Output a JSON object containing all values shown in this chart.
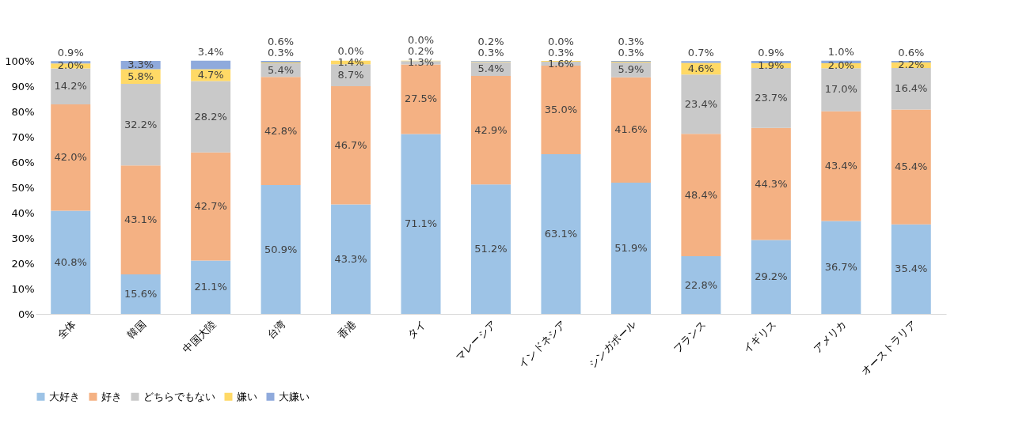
{
  "chart_data": {
    "type": "bar",
    "stacked": true,
    "categories": [
      "全体",
      "韓国",
      "中国大陸",
      "台湾",
      "香港",
      "タイ",
      "マレーシア",
      "インドネシア",
      "シンガポール",
      "フランス",
      "イギリス",
      "アメリカ",
      "オーストラリア"
    ],
    "series": [
      {
        "name": "大好き",
        "color": "#9dc3e6",
        "values": [
          40.8,
          15.6,
          21.1,
          50.9,
          43.3,
          71.1,
          51.2,
          63.1,
          51.9,
          22.8,
          29.2,
          36.7,
          35.4
        ],
        "value_labels": [
          "40.8%",
          "15.6%",
          "21.1%",
          "50.9%",
          "43.3%",
          "71.1%",
          "51.2%",
          "63.1%",
          "51.9%",
          "22.8%",
          "29.2%",
          "36.7%",
          "35.4%"
        ]
      },
      {
        "name": "好き",
        "color": "#f4b183",
        "values": [
          42.0,
          43.1,
          42.7,
          42.8,
          46.7,
          27.5,
          42.9,
          35.0,
          41.6,
          48.4,
          44.3,
          43.4,
          45.4
        ],
        "value_labels": [
          "42.0%",
          "43.1%",
          "42.7%",
          "42.8%",
          "46.7%",
          "27.5%",
          "42.9%",
          "35.0%",
          "41.6%",
          "48.4%",
          "44.3%",
          "43.4%",
          "45.4%"
        ]
      },
      {
        "name": "どちらでもない",
        "color": "#c9c9c9",
        "values": [
          14.2,
          32.2,
          28.2,
          5.4,
          8.7,
          1.3,
          5.4,
          1.6,
          5.9,
          23.4,
          23.7,
          17.0,
          16.4
        ],
        "value_labels": [
          "14.2%",
          "32.2%",
          "28.2%",
          "5.4%",
          "8.7%",
          "1.3%",
          "5.4%",
          "1.6%",
          "5.9%",
          "23.4%",
          "23.7%",
          "17.0%",
          "16.4%"
        ]
      },
      {
        "name": "嫌い",
        "color": "#ffd966",
        "values": [
          2.0,
          5.8,
          4.7,
          0.3,
          1.4,
          0.2,
          0.3,
          0.3,
          0.3,
          4.6,
          1.9,
          2.0,
          2.2
        ],
        "value_labels": [
          "2.0%",
          "5.8%",
          "4.7%",
          "0.3%",
          "1.4%",
          "0.2%",
          "0.3%",
          "0.3%",
          "0.3%",
          "4.6%",
          "1.9%",
          "2.0%",
          "2.2%"
        ]
      },
      {
        "name": "大嫌い",
        "color": "#8faadc",
        "values": [
          0.9,
          3.3,
          3.4,
          0.6,
          0.0,
          0.0,
          0.2,
          0.0,
          0.3,
          0.7,
          0.9,
          1.0,
          0.6
        ],
        "value_labels": [
          "0.9%",
          "3.3%",
          "3.4%",
          "0.6%",
          "0.0%",
          "0.0%",
          "0.2%",
          "0.0%",
          "0.3%",
          "0.7%",
          "0.9%",
          "1.0%",
          "0.6%"
        ]
      }
    ],
    "ylim": [
      0,
      100
    ],
    "yticks": [
      {
        "value": 0,
        "label": "0%"
      },
      {
        "value": 10,
        "label": "10%"
      },
      {
        "value": 20,
        "label": "20%"
      },
      {
        "value": 30,
        "label": "30%"
      },
      {
        "value": 40,
        "label": "40%"
      },
      {
        "value": 50,
        "label": "50%"
      },
      {
        "value": 60,
        "label": "60%"
      },
      {
        "value": 70,
        "label": "70%"
      },
      {
        "value": 80,
        "label": "80%"
      },
      {
        "value": 90,
        "label": "90%"
      },
      {
        "value": 100,
        "label": "100%"
      }
    ],
    "grid": false,
    "legend": "bottom"
  }
}
